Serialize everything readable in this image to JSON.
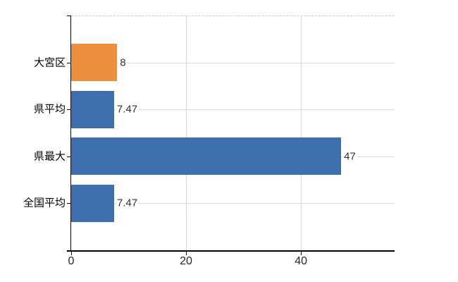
{
  "chart_data": {
    "type": "bar",
    "orientation": "horizontal",
    "title": "",
    "xlabel": "",
    "ylabel": "",
    "categories": [
      "大宮区",
      "県平均",
      "県最大",
      "全国平均"
    ],
    "category_ids": [
      "omiya-ku",
      "ken-heikin",
      "ken-saidai",
      "zenkoku-heikin"
    ],
    "values": [
      8,
      7.47,
      47,
      7.47
    ],
    "value_labels": [
      "8",
      "7.47",
      "47",
      "7.47"
    ],
    "bar_colors": [
      "#ee8f3e",
      "#3d6fae",
      "#3d6fae",
      "#3d6fae"
    ],
    "x_ticks": [
      "0",
      "20",
      "40"
    ],
    "x_tick_values": [
      0,
      20,
      40
    ],
    "xlim": [
      0,
      56.3
    ],
    "grid": "on",
    "legend": "none"
  },
  "colors": {
    "highlight_bar": "#ee8f3e",
    "default_bar": "#3d6fae",
    "grid_horizontal": "#d5ddd5",
    "grid_vertical": "#d8d4de",
    "plot_top_border": "#c9c9c9",
    "axis": "#000000",
    "value_label_text": "#333333",
    "tick_label_text": "#262626",
    "category_label_text": "#000000",
    "background": "#ffffff"
  }
}
